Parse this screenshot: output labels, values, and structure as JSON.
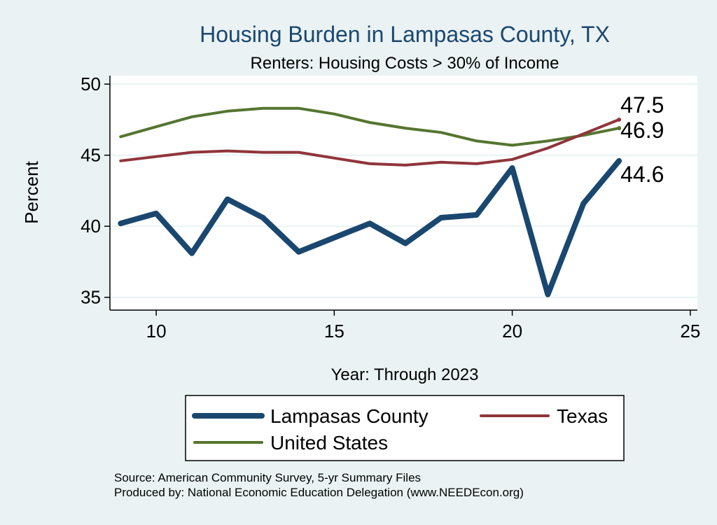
{
  "chart_data": {
    "type": "line",
    "title": "Housing Burden in Lampasas County, TX",
    "subtitle": "Renters: Housing Costs > 30% of Income",
    "xlabel": "Year: Through 2023",
    "ylabel": "Percent",
    "xlim": [
      8.7,
      25.2
    ],
    "ylim": [
      34.1,
      50.6
    ],
    "xticks": [
      10,
      15,
      20,
      25
    ],
    "yticks": [
      35,
      40,
      45,
      50
    ],
    "grid": true,
    "legend_position": "bottom",
    "x": [
      9,
      10,
      11,
      12,
      13,
      14,
      15,
      16,
      17,
      18,
      19,
      20,
      21,
      22,
      23
    ],
    "series": [
      {
        "name": "Lampasas County",
        "color": "#1a476f",
        "values": [
          40.2,
          40.9,
          38.1,
          41.9,
          40.6,
          38.2,
          39.2,
          40.2,
          38.8,
          40.6,
          40.8,
          44.1,
          35.2,
          41.6,
          44.6
        ],
        "end_label": "44.6"
      },
      {
        "name": "Texas",
        "color": "#90353b",
        "values": [
          44.6,
          44.9,
          45.2,
          45.3,
          45.2,
          45.2,
          44.8,
          44.4,
          44.3,
          44.5,
          44.4,
          44.7,
          45.5,
          46.5,
          47.5
        ],
        "end_label": "47.5"
      },
      {
        "name": "United States",
        "color": "#55752f",
        "values": [
          46.3,
          47.0,
          47.7,
          48.1,
          48.3,
          48.3,
          47.9,
          47.3,
          46.9,
          46.6,
          46.0,
          45.7,
          46.0,
          46.4,
          46.9
        ],
        "end_label": "46.9"
      }
    ]
  },
  "footer": {
    "source": "Source: American Community Survey, 5-yr Summary Files",
    "producer": "Produced by: National Economic Education Delegation (www.NEEDEcon.org)"
  }
}
